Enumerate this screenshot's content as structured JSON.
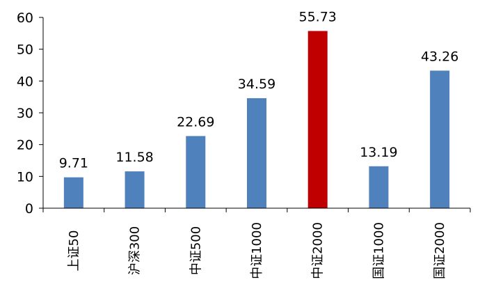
{
  "chart_data": {
    "type": "bar",
    "categories": [
      "上证50",
      "沪深300",
      "中证500",
      "中证1000",
      "中证2000",
      "国证1000",
      "国证2000"
    ],
    "values": [
      9.71,
      11.58,
      22.69,
      34.59,
      55.73,
      13.19,
      43.26
    ],
    "data_labels": [
      "9.71",
      "11.58",
      "22.69",
      "34.59",
      "55.73",
      "13.19",
      "43.26"
    ],
    "title": "",
    "xlabel": "",
    "ylabel": "",
    "ylim": [
      0,
      60
    ],
    "yticks": [
      0,
      10,
      20,
      30,
      40,
      50,
      60
    ],
    "grid": false,
    "legend": "none",
    "colors": {
      "default_bar": "#4F81BD",
      "highlight_bar": "#C00000",
      "highlight_category": "中证2000"
    }
  }
}
